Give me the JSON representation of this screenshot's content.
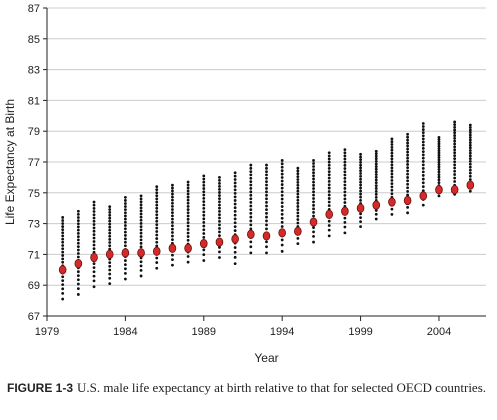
{
  "chart_data": {
    "type": "scatter",
    "xlabel": "Year",
    "ylabel": "Life Expectancy at Birth",
    "xlim": [
      1979,
      2007
    ],
    "ylim": [
      67,
      87
    ],
    "xticks": [
      "1979",
      "1984",
      "1989",
      "1994",
      "1999",
      "2004"
    ],
    "yticks": [
      "67",
      "69",
      "71",
      "73",
      "75",
      "77",
      "79",
      "81",
      "83",
      "85",
      "87"
    ],
    "grid": "horizontal",
    "colors": {
      "us": "#d42a2a",
      "oecd": "#111111",
      "grid": "#cccccc"
    },
    "series": [
      {
        "role": "us",
        "x": [
          1980,
          1981,
          1982,
          1983,
          1984,
          1985,
          1986,
          1987,
          1988,
          1989,
          1990,
          1991,
          1992,
          1993,
          1994,
          1995,
          1996,
          1997,
          1998,
          1999,
          2000,
          2001,
          2002,
          2003,
          2004,
          2005,
          2006
        ],
        "y": [
          70.0,
          70.4,
          70.8,
          71.0,
          71.1,
          71.1,
          71.2,
          71.4,
          71.4,
          71.7,
          71.8,
          72.0,
          72.3,
          72.2,
          72.4,
          72.5,
          73.1,
          73.6,
          73.8,
          74.0,
          74.2,
          74.4,
          74.5,
          74.8,
          75.2,
          75.2,
          75.5
        ]
      },
      {
        "role": "oecd",
        "x": [
          1980,
          1981,
          1982,
          1983,
          1984,
          1985,
          1986,
          1987,
          1988,
          1989,
          1990,
          1991,
          1992,
          1993,
          1994,
          1995,
          1996,
          1997,
          1998,
          1999,
          2000,
          2001,
          2002,
          2003,
          2004,
          2005,
          2006
        ],
        "min": [
          68.1,
          68.4,
          68.9,
          69.1,
          69.4,
          69.6,
          70.1,
          70.3,
          70.5,
          70.6,
          70.8,
          70.4,
          71.1,
          71.1,
          71.2,
          71.7,
          71.8,
          72.2,
          72.4,
          72.8,
          73.3,
          73.6,
          73.7,
          74.2,
          74.8,
          74.9,
          75.1
        ],
        "max": [
          73.4,
          73.8,
          74.4,
          74.1,
          74.7,
          74.8,
          75.4,
          75.5,
          75.7,
          76.1,
          76.0,
          76.3,
          76.8,
          76.8,
          77.1,
          76.6,
          77.1,
          77.6,
          77.8,
          77.5,
          77.7,
          78.5,
          78.8,
          79.5,
          78.6,
          79.6,
          79.4
        ],
        "counts": [
          24,
          24,
          24,
          24,
          24,
          24,
          24,
          24,
          24,
          24,
          24,
          24,
          24,
          24,
          24,
          24,
          24,
          24,
          24,
          24,
          24,
          24,
          24,
          24,
          24,
          24,
          24
        ]
      }
    ]
  },
  "caption": {
    "figure": "FIGURE 1-3",
    "text": "U.S. male life expectancy at birth relative to that for selected OECD countries."
  }
}
